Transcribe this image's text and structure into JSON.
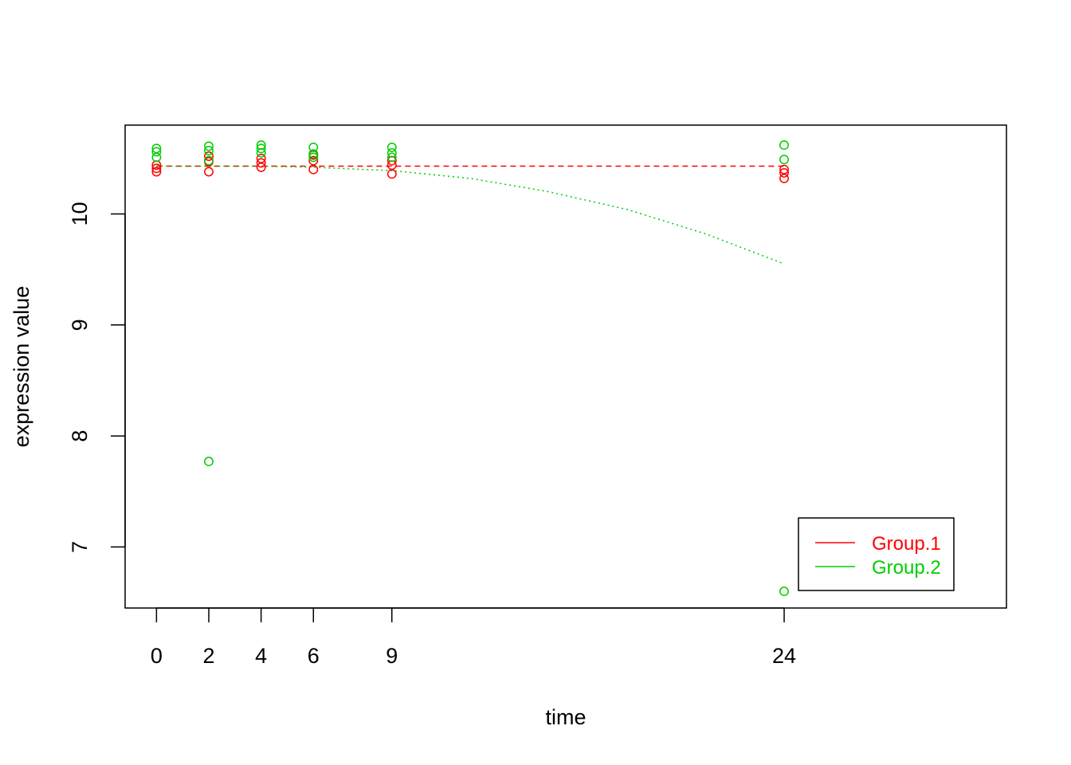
{
  "chart_data": {
    "type": "scatter",
    "xlabel": "time",
    "ylabel": "expression value",
    "xlim": [
      -1.2,
      32.5
    ],
    "ylim": [
      6.45,
      10.8
    ],
    "xticks": [
      0,
      2,
      4,
      6,
      9,
      24
    ],
    "yticks": [
      7,
      8,
      9,
      10
    ],
    "legend_position": "bottom-right",
    "series": [
      {
        "name": "Group.1",
        "color": "#FF0000",
        "points": [
          {
            "x": 0,
            "y": 10.38
          },
          {
            "x": 0,
            "y": 10.41
          },
          {
            "x": 0,
            "y": 10.44
          },
          {
            "x": 2,
            "y": 10.38
          },
          {
            "x": 2,
            "y": 10.47
          },
          {
            "x": 2,
            "y": 10.52
          },
          {
            "x": 4,
            "y": 10.42
          },
          {
            "x": 4,
            "y": 10.46
          },
          {
            "x": 4,
            "y": 10.5
          },
          {
            "x": 6,
            "y": 10.4
          },
          {
            "x": 6,
            "y": 10.48
          },
          {
            "x": 6,
            "y": 10.53
          },
          {
            "x": 9,
            "y": 10.36
          },
          {
            "x": 9,
            "y": 10.44
          },
          {
            "x": 9,
            "y": 10.48
          },
          {
            "x": 24,
            "y": 10.32
          },
          {
            "x": 24,
            "y": 10.37
          },
          {
            "x": 24,
            "y": 10.4
          }
        ],
        "fit": {
          "style": "dashed",
          "x": [
            0,
            24
          ],
          "y": [
            10.43,
            10.43
          ]
        }
      },
      {
        "name": "Group.2",
        "color": "#00CD00",
        "points": [
          {
            "x": 0,
            "y": 10.51
          },
          {
            "x": 0,
            "y": 10.56
          },
          {
            "x": 0,
            "y": 10.59
          },
          {
            "x": 2,
            "y": 7.77
          },
          {
            "x": 2,
            "y": 10.48
          },
          {
            "x": 2,
            "y": 10.57
          },
          {
            "x": 2,
            "y": 10.61
          },
          {
            "x": 4,
            "y": 10.55
          },
          {
            "x": 4,
            "y": 10.59
          },
          {
            "x": 4,
            "y": 10.62
          },
          {
            "x": 6,
            "y": 10.51
          },
          {
            "x": 6,
            "y": 10.54
          },
          {
            "x": 6,
            "y": 10.6
          },
          {
            "x": 9,
            "y": 10.51
          },
          {
            "x": 9,
            "y": 10.55
          },
          {
            "x": 9,
            "y": 10.6
          },
          {
            "x": 24,
            "y": 6.6
          },
          {
            "x": 24,
            "y": 10.49
          },
          {
            "x": 24,
            "y": 10.62
          }
        ],
        "fit": {
          "style": "dotted",
          "x": [
            0,
            2,
            4,
            6,
            9,
            12,
            15,
            18,
            21,
            24
          ],
          "y": [
            10.43,
            10.43,
            10.43,
            10.42,
            10.39,
            10.32,
            10.2,
            10.04,
            9.82,
            9.55
          ]
        }
      }
    ]
  }
}
